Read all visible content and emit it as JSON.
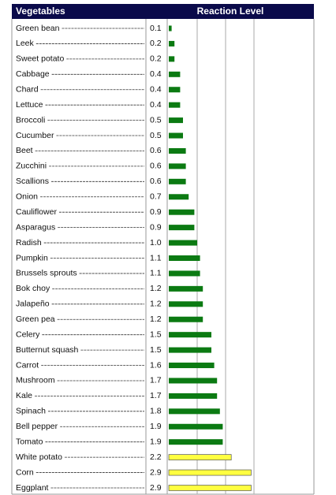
{
  "chart_data": {
    "type": "bar",
    "headers": [
      "Vegetables",
      "Reaction Level"
    ],
    "categories": [
      "Green bean",
      "Leek",
      "Sweet potato",
      "Cabbage",
      "Chard",
      "Lettuce",
      "Broccoli",
      "Cucumber",
      "Beet",
      "Zucchini",
      "Scallions",
      "Onion",
      "Cauliflower",
      "Asparagus",
      "Radish",
      "Pumpkin",
      "Brussels sprouts",
      "Bok choy",
      "Jalapeño",
      "Green pea",
      "Celery",
      "Butternut squash",
      "Carrot",
      "Mushroom",
      "Kale",
      "Spinach",
      "Bell pepper",
      "Tomato",
      "White potato",
      "Corn",
      "Eggplant"
    ],
    "values": [
      0.1,
      0.2,
      0.2,
      0.4,
      0.4,
      0.4,
      0.5,
      0.5,
      0.6,
      0.6,
      0.6,
      0.7,
      0.9,
      0.9,
      1.0,
      1.1,
      1.1,
      1.2,
      1.2,
      1.2,
      1.5,
      1.5,
      1.6,
      1.7,
      1.7,
      1.8,
      1.9,
      1.9,
      2.2,
      2.9,
      2.9
    ],
    "value_labels": [
      "0.1",
      "0.2",
      "0.2",
      "0.4",
      "0.4",
      "0.4",
      "0.5",
      "0.5",
      "0.6",
      "0.6",
      "0.6",
      "0.7",
      "0.9",
      "0.9",
      "1.0",
      "1.1",
      "1.1",
      "1.2",
      "1.2",
      "1.2",
      "1.5",
      "1.5",
      "1.6",
      "1.7",
      "1.7",
      "1.8",
      "1.9",
      "1.9",
      "2.2",
      "2.9",
      "2.9"
    ],
    "colors": [
      "#0b7a12",
      "#0b7a12",
      "#0b7a12",
      "#0b7a12",
      "#0b7a12",
      "#0b7a12",
      "#0b7a12",
      "#0b7a12",
      "#0b7a12",
      "#0b7a12",
      "#0b7a12",
      "#0b7a12",
      "#0b7a12",
      "#0b7a12",
      "#0b7a12",
      "#0b7a12",
      "#0b7a12",
      "#0b7a12",
      "#0b7a12",
      "#0b7a12",
      "#0b7a12",
      "#0b7a12",
      "#0b7a12",
      "#0b7a12",
      "#0b7a12",
      "#0b7a12",
      "#0b7a12",
      "#0b7a12",
      "#ffff40",
      "#ffff40",
      "#ffff40"
    ],
    "xlim": [
      0,
      5
    ],
    "xticks": [
      1,
      2,
      3
    ],
    "grid": true
  }
}
